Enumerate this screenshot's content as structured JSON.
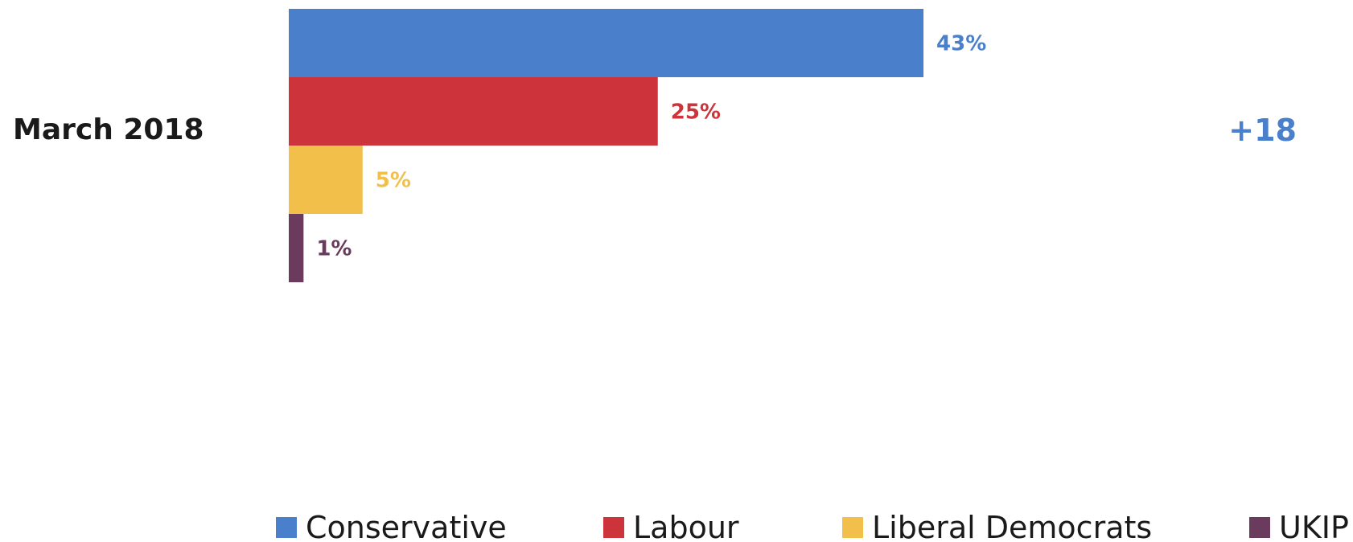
{
  "chart_data": {
    "type": "bar",
    "orientation": "horizontal",
    "categories": [
      "March 2018"
    ],
    "series": [
      {
        "name": "Conservative",
        "color": "#4a7fcb",
        "values": [
          43
        ],
        "value_label": "43%"
      },
      {
        "name": "Labour",
        "color": "#cc333a",
        "values": [
          25
        ],
        "value_label": "25%"
      },
      {
        "name": "Liberal Democrats",
        "color": "#f2bf4b",
        "values": [
          5
        ],
        "value_label": "5%"
      },
      {
        "name": "UKIP",
        "color": "#6a3b5c",
        "values": [
          1
        ],
        "value_label": "1%"
      }
    ],
    "xlim": [
      0,
      100
    ],
    "unit": "%",
    "lead": {
      "text": "+18",
      "color": "#4a7fcb"
    },
    "legend_position": "bottom",
    "grid": false,
    "title": "",
    "xlabel": "",
    "ylabel": ""
  }
}
